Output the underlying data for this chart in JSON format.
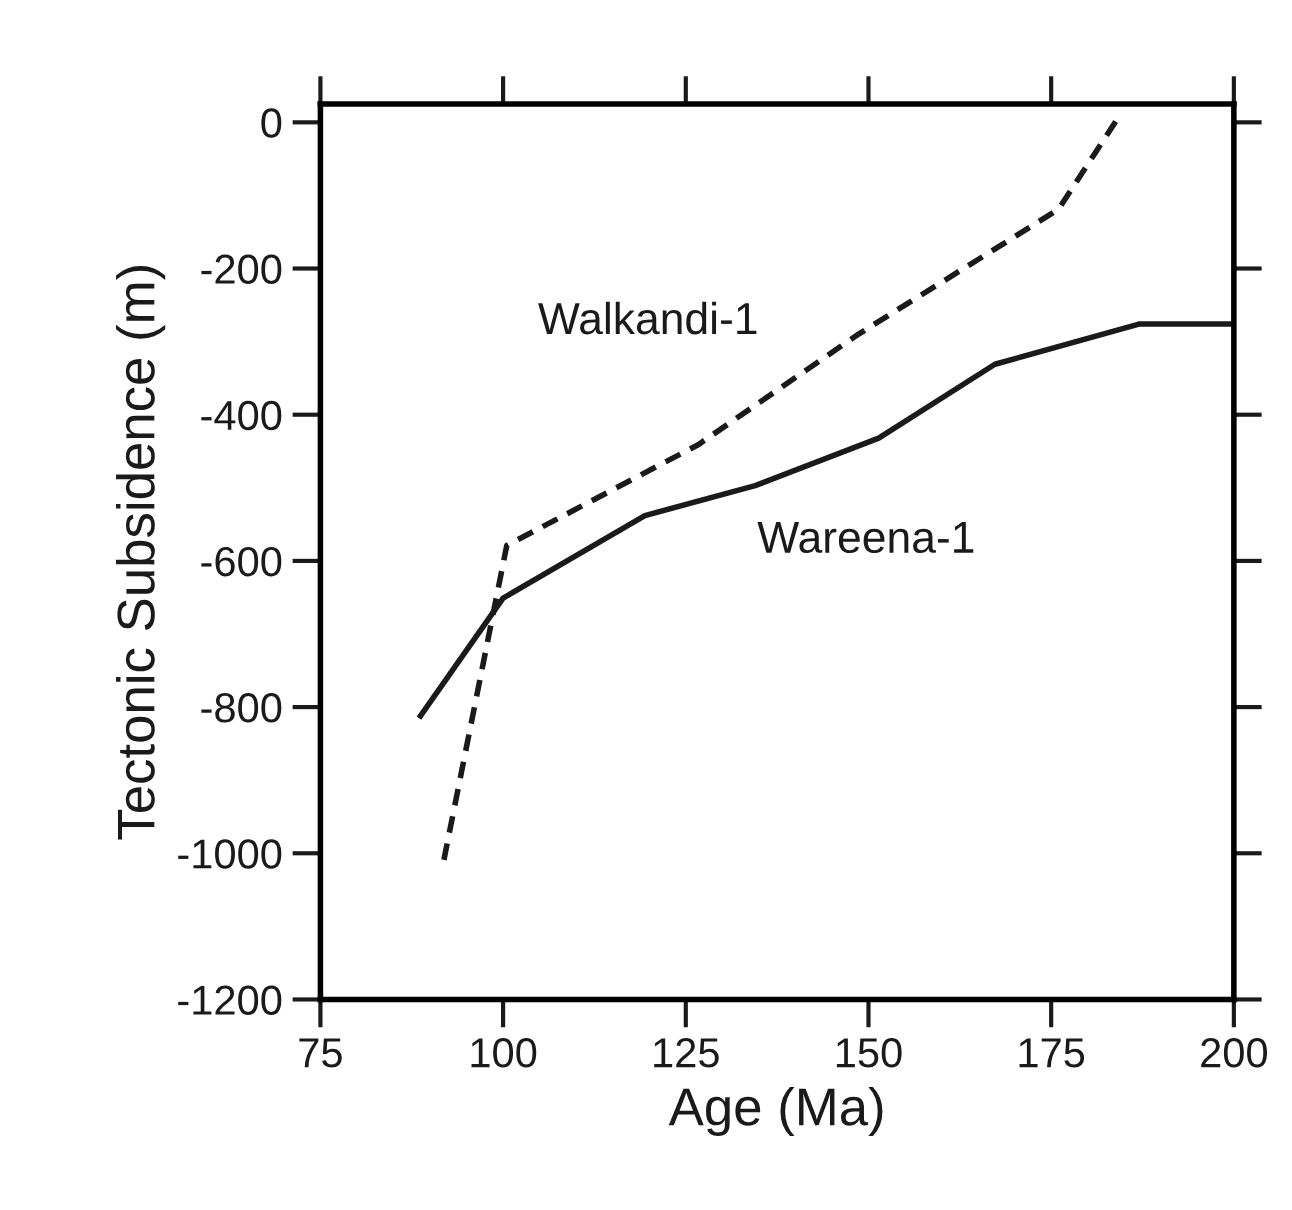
{
  "chart_data": {
    "type": "line",
    "xlabel": "Age (Ma)",
    "ylabel": "Tectonic Subsidence (m)",
    "xlim": [
      75,
      200
    ],
    "xticks": [
      75,
      100,
      125,
      150,
      175,
      200
    ],
    "ylim": [
      -1200,
      25
    ],
    "yticks": [
      -1200,
      -1000,
      -800,
      -600,
      -400,
      -200,
      0
    ],
    "grid": false,
    "legend": false,
    "series": [
      {
        "name": "Walkandi-1",
        "color": "#1a1a1a",
        "line_style": "dashed",
        "x": [
          91.9,
          100.5,
          126.7,
          148.6,
          176,
          184.2
        ],
        "values": [
          -1009,
          -579,
          -441,
          -290,
          -119,
          7
        ]
      },
      {
        "name": "Wareena-1",
        "color": "#1a1a1a",
        "line_style": "solid",
        "x": [
          88.7,
          100,
          119.4,
          134.5,
          151.4,
          167.3,
          187,
          200
        ],
        "values": [
          -812,
          -651,
          -538,
          -497,
          -432,
          -331,
          -276,
          -276
        ]
      }
    ]
  }
}
